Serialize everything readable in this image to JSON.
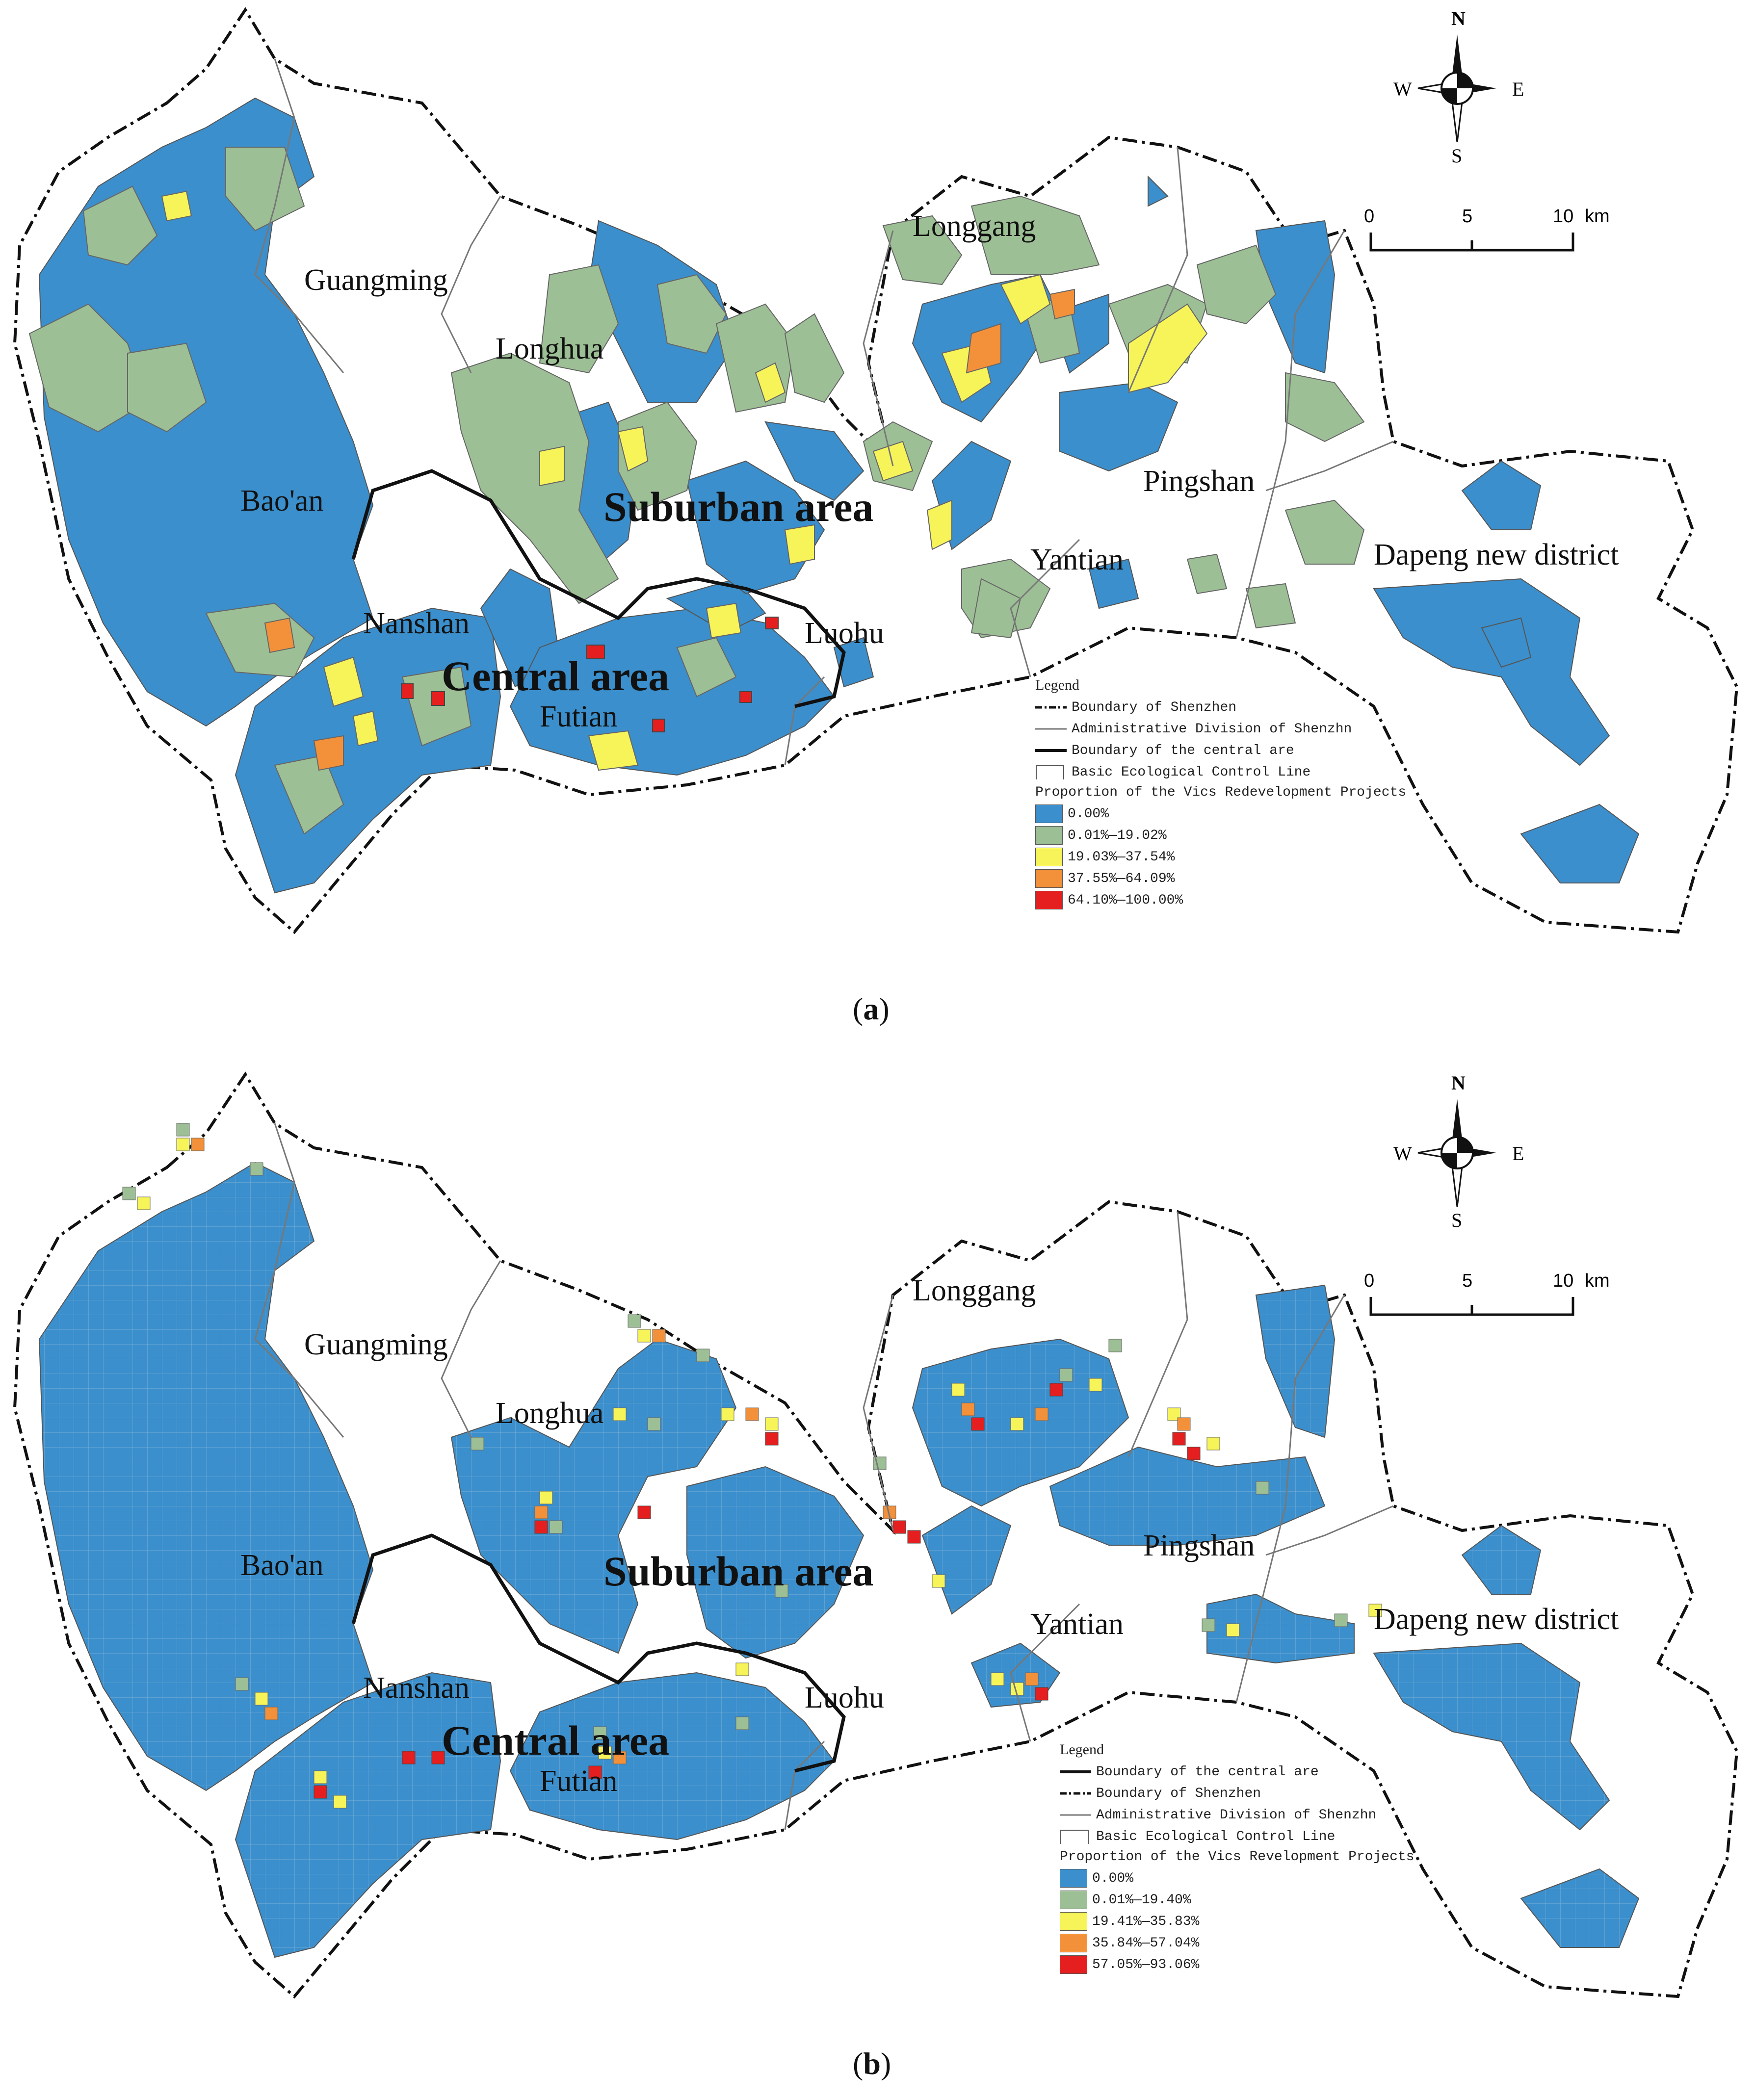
{
  "maps": [
    {
      "caption": "a",
      "districts": [
        "Guangming",
        "Longhua",
        "Bao'an",
        "Nanshan",
        "Futian",
        "Luohu",
        "Longgang",
        "Pingshan",
        "Yantian",
        "Dapeng new district"
      ],
      "regions": [
        "Suburban area",
        "Central area"
      ],
      "compass": {
        "n": "N",
        "s": "S",
        "e": "E",
        "w": "W"
      },
      "scale": {
        "ticks": [
          "0",
          "5",
          "10"
        ],
        "unit": "km"
      },
      "legend": {
        "title": "Legend",
        "lines": [
          "Boundary of Shenzhen",
          "Administrative Division of Shenzhn",
          "Boundary of the central are",
          "Basic Ecological Control Line"
        ],
        "classes_title": "Proportion of the Vics Redevelopment Projects",
        "classes": [
          {
            "label": "0.00%",
            "color": "#3b8fcc"
          },
          {
            "label": "0.01%—19.02%",
            "color": "#9dbf95"
          },
          {
            "label": "19.03%—37.54%",
            "color": "#f7f45a"
          },
          {
            "label": "37.55%—64.09%",
            "color": "#f3913a"
          },
          {
            "label": "64.10%—100.00%",
            "color": "#e51f1f"
          }
        ]
      }
    },
    {
      "caption": "b",
      "districts": [
        "Guangming",
        "Longhua",
        "Bao'an",
        "Nanshan",
        "Futian",
        "Luohu",
        "Longgang",
        "Pingshan",
        "Yantian",
        "Dapeng new district"
      ],
      "regions": [
        "Suburban area",
        "Central area"
      ],
      "compass": {
        "n": "N",
        "s": "S",
        "e": "E",
        "w": "W"
      },
      "scale": {
        "ticks": [
          "0",
          "5",
          "10"
        ],
        "unit": "km"
      },
      "legend": {
        "title": "Legend",
        "lines": [
          "Boundary of the central are",
          "Boundary of Shenzhen",
          "Administrative Division of Shenzhn",
          "Basic Ecological Control Line"
        ],
        "classes_title": "Proportion of the Vics Revelopment Projects",
        "classes": [
          {
            "label": "0.00%",
            "color": "#3b8fcc"
          },
          {
            "label": "0.01%—19.40%",
            "color": "#9dbf95"
          },
          {
            "label": "19.41%—35.83%",
            "color": "#f7f45a"
          },
          {
            "label": "35.84%—57.04%",
            "color": "#f3913a"
          },
          {
            "label": "57.05%—93.06%",
            "color": "#e51f1f"
          }
        ]
      }
    }
  ]
}
